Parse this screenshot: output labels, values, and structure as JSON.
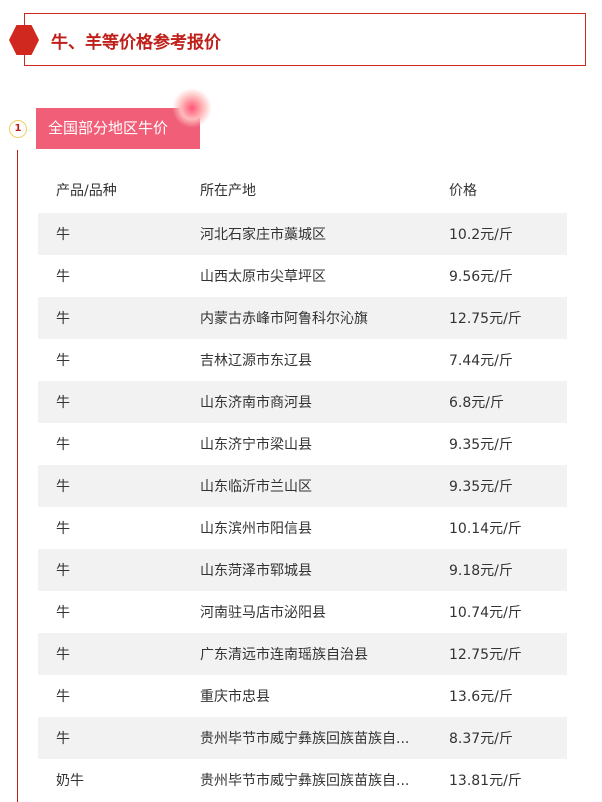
{
  "header": {
    "title": "牛、羊等价格参考报价"
  },
  "section": {
    "number": "1",
    "title": "全国部分地区牛价"
  },
  "table": {
    "columns": [
      "产品/品种",
      "所在产地",
      "价格"
    ],
    "rows": [
      [
        "牛",
        "河北石家庄市藁城区",
        "10.2元/斤"
      ],
      [
        "牛",
        "山西太原市尖草坪区",
        "9.56元/斤"
      ],
      [
        "牛",
        "内蒙古赤峰市阿鲁科尔沁旗",
        "12.75元/斤"
      ],
      [
        "牛",
        "吉林辽源市东辽县",
        "7.44元/斤"
      ],
      [
        "牛",
        "山东济南市商河县",
        "6.8元/斤"
      ],
      [
        "牛",
        "山东济宁市梁山县",
        "9.35元/斤"
      ],
      [
        "牛",
        "山东临沂市兰山区",
        "9.35元/斤"
      ],
      [
        "牛",
        "山东滨州市阳信县",
        "10.14元/斤"
      ],
      [
        "牛",
        "山东菏泽市郓城县",
        "9.18元/斤"
      ],
      [
        "牛",
        "河南驻马店市泌阳县",
        "10.74元/斤"
      ],
      [
        "牛",
        "广东清远市连南瑶族自治县",
        "12.75元/斤"
      ],
      [
        "牛",
        "重庆市忠县",
        "13.6元/斤"
      ],
      [
        "牛",
        "贵州毕节市威宁彝族回族苗族自...",
        "8.37元/斤"
      ],
      [
        "奶牛",
        "贵州毕节市威宁彝族回族苗族自...",
        "13.81元/斤"
      ]
    ]
  }
}
